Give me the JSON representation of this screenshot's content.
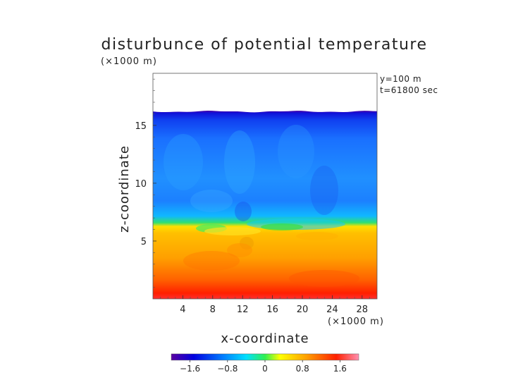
{
  "chart_data": {
    "type": "heatmap",
    "title": "disturbunce of potential temperature",
    "xlabel": "x-coordinate",
    "ylabel": "z-coordinate",
    "x_unit_label": "(×1000 m)",
    "y_unit_label": "(×1000 m)",
    "xlim": [
      0,
      30
    ],
    "ylim": [
      0,
      19.5
    ],
    "x_ticks": [
      4,
      8,
      12,
      16,
      20,
      24,
      28
    ],
    "y_ticks": [
      5,
      10,
      15
    ],
    "annotations": [
      "y=100 m",
      "t=61800 sec"
    ],
    "grid": false,
    "colorbar": {
      "range": [
        -2.0,
        2.0
      ],
      "ticks": [
        "−1.6",
        "−0.8",
        "0",
        "0.8",
        "1.6"
      ],
      "tick_values": [
        -1.6,
        -0.8,
        0,
        0.8,
        1.6
      ],
      "colormap": [
        "#5a00a0",
        "#0000e0",
        "#0080ff",
        "#00e0ff",
        "#30f050",
        "#ffff00",
        "#ffa000",
        "#ff2000",
        "#ff80a0"
      ]
    },
    "field_summary": [
      {
        "z_range": [
          0,
          6.5
        ],
        "description": "warm layer",
        "value_range": [
          0.8,
          1.8
        ]
      },
      {
        "z_range": [
          6.5,
          16.2
        ],
        "description": "cool layer",
        "value_range": [
          -1.2,
          -0.6
        ]
      },
      {
        "z_range": [
          16.2,
          16.4
        ],
        "description": "top boundary",
        "value_range": [
          -1.8,
          -1.6
        ]
      },
      {
        "z_range": [
          16.4,
          19.5
        ],
        "description": "no data",
        "value_range": null
      }
    ]
  }
}
